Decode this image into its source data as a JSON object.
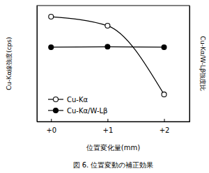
{
  "chart_data": {
    "type": "line",
    "title": "図 6. 位置変動の補正効果",
    "xlabel": "位置変化量(mm)",
    "ylabel": "Cu-Kα線強度(cps)",
    "y2label": "Cu-Kα/W-Lβ強度比",
    "x": [
      0,
      1,
      2
    ],
    "xlim": [
      -0.25,
      2.45
    ],
    "xticks": [
      {
        "value": 0,
        "label": "+0"
      },
      {
        "value": 1,
        "label": "+1"
      },
      {
        "value": 2,
        "label": "+2"
      }
    ],
    "ylim": [
      0,
      100
    ],
    "y2lim": [
      0,
      100
    ],
    "tick_labels": "x",
    "legend": "lower left",
    "series": [
      {
        "name": "Cu-Kα",
        "color": "#000000",
        "marker": "circle-open",
        "line_style": "smooth",
        "values": [
          90.4,
          82.6,
          23.4
        ]
      },
      {
        "name": "Cu-Kα/W-Lβ",
        "color": "#000000",
        "marker": "circle",
        "line_style": "solid",
        "axis": "y2",
        "values": [
          64.1,
          64.5,
          64.1
        ]
      }
    ]
  }
}
